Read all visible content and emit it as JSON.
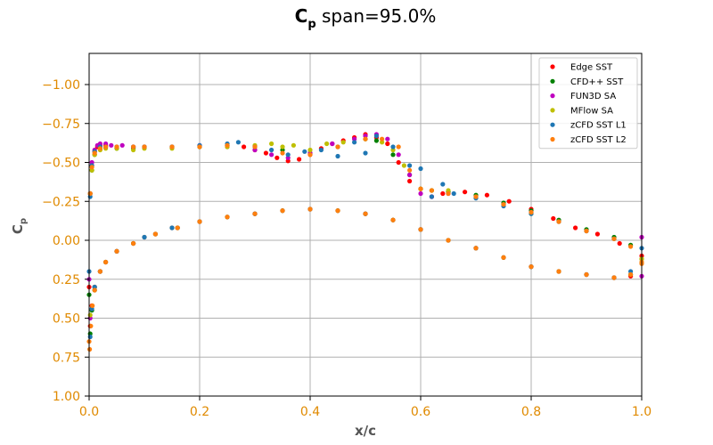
{
  "chart_data": {
    "type": "scatter",
    "title": {
      "symbol": "C",
      "subscript": "p",
      "text": " span=95.0%"
    },
    "xlabel": "x/c",
    "ylabel": {
      "symbol": "C",
      "subscript": "p"
    },
    "xlim": [
      0.0,
      1.0
    ],
    "ylim": [
      1.0,
      -1.2
    ],
    "y_inverted": true,
    "grid": true,
    "legend_position": "top-right",
    "x_ticks": [
      0.0,
      0.2,
      0.4,
      0.6,
      0.8,
      1.0
    ],
    "x_tick_labels": [
      "0.0",
      "0.2",
      "0.4",
      "0.6",
      "0.8",
      "1.0"
    ],
    "y_ticks": [
      -1.0,
      -0.75,
      -0.5,
      -0.25,
      0.0,
      0.25,
      0.5,
      0.75,
      1.0
    ],
    "y_tick_labels": [
      "−1.00",
      "−0.75",
      "−0.50",
      "−0.25",
      "0.00",
      "0.25",
      "0.50",
      "0.75",
      "1.00"
    ],
    "series": [
      {
        "name": "Edge SST",
        "color": "#ff0000",
        "x": [
          0.0,
          0.002,
          0.005,
          0.01,
          0.015,
          0.02,
          0.03,
          0.05,
          0.08,
          0.1,
          0.15,
          0.2,
          0.25,
          0.28,
          0.3,
          0.32,
          0.34,
          0.36,
          0.38,
          0.4,
          0.42,
          0.44,
          0.46,
          0.48,
          0.5,
          0.52,
          0.54,
          0.56,
          0.58,
          0.6,
          0.62,
          0.64,
          0.68,
          0.72,
          0.76,
          0.8,
          0.84,
          0.88,
          0.92,
          0.96,
          1.0,
          0.002,
          0.005,
          0.01,
          0.02,
          0.03,
          0.05,
          0.08,
          0.12,
          0.16,
          0.2,
          0.25,
          0.3,
          0.35,
          0.4,
          0.45,
          0.5,
          0.55,
          0.6,
          0.65,
          0.7,
          0.75,
          0.8,
          0.85,
          0.9,
          0.95,
          0.98
        ],
        "y": [
          0.3,
          -0.3,
          -0.48,
          -0.57,
          -0.6,
          -0.61,
          -0.61,
          -0.6,
          -0.6,
          -0.6,
          -0.6,
          -0.6,
          -0.61,
          -0.6,
          -0.58,
          -0.56,
          -0.53,
          -0.51,
          -0.52,
          -0.55,
          -0.59,
          -0.62,
          -0.64,
          -0.66,
          -0.68,
          -0.66,
          -0.62,
          -0.5,
          -0.38,
          -0.33,
          -0.28,
          -0.3,
          -0.31,
          -0.29,
          -0.25,
          -0.2,
          -0.14,
          -0.08,
          -0.04,
          0.02,
          0.1,
          0.55,
          0.42,
          0.3,
          0.2,
          0.14,
          0.07,
          0.02,
          -0.04,
          -0.08,
          -0.12,
          -0.15,
          -0.17,
          -0.19,
          -0.2,
          -0.19,
          -0.17,
          -0.13,
          -0.07,
          0.0,
          0.05,
          0.11,
          0.17,
          0.2,
          0.22,
          0.24,
          0.23
        ]
      },
      {
        "name": "CFD++ SST",
        "color": "#008000",
        "x": [
          0.0,
          0.002,
          0.005,
          0.01,
          0.02,
          0.03,
          0.05,
          0.08,
          0.1,
          0.15,
          0.2,
          0.25,
          0.3,
          0.35,
          0.4,
          0.45,
          0.5,
          0.52,
          0.55,
          0.58,
          0.6,
          0.62,
          0.65,
          0.7,
          0.75,
          0.8,
          0.85,
          0.9,
          0.95,
          0.98,
          1.0,
          0.002,
          0.005,
          0.01,
          0.02,
          0.03,
          0.05,
          0.08,
          0.12,
          0.16,
          0.2,
          0.25,
          0.3,
          0.35,
          0.4,
          0.45,
          0.5,
          0.55,
          0.6,
          0.65,
          0.7,
          0.75,
          0.8,
          0.85,
          0.9,
          0.95,
          0.98
        ],
        "y": [
          0.35,
          -0.3,
          -0.45,
          -0.55,
          -0.59,
          -0.6,
          -0.59,
          -0.59,
          -0.6,
          -0.6,
          -0.6,
          -0.61,
          -0.6,
          -0.58,
          -0.56,
          -0.6,
          -0.65,
          -0.64,
          -0.55,
          -0.42,
          -0.33,
          -0.32,
          -0.31,
          -0.29,
          -0.24,
          -0.19,
          -0.13,
          -0.07,
          -0.02,
          0.03,
          0.12,
          0.6,
          0.45,
          0.32,
          0.2,
          0.14,
          0.07,
          0.02,
          -0.04,
          -0.08,
          -0.12,
          -0.15,
          -0.17,
          -0.19,
          -0.2,
          -0.19,
          -0.17,
          -0.13,
          -0.07,
          0.0,
          0.05,
          0.11,
          0.17,
          0.2,
          0.22,
          0.24,
          0.22
        ]
      },
      {
        "name": "FUN3D SA",
        "color": "#bf00bf",
        "x": [
          0.0,
          0.002,
          0.005,
          0.01,
          0.015,
          0.02,
          0.03,
          0.04,
          0.06,
          0.08,
          0.1,
          0.15,
          0.2,
          0.25,
          0.3,
          0.33,
          0.36,
          0.4,
          0.44,
          0.48,
          0.5,
          0.52,
          0.54,
          0.56,
          0.58,
          0.6,
          0.62,
          0.65,
          0.7,
          0.75,
          0.8,
          0.85,
          0.9,
          0.95,
          1.0,
          0.002,
          0.01,
          0.02,
          0.05,
          0.1,
          0.15,
          0.2,
          0.3,
          0.4,
          0.5,
          0.6,
          0.7,
          0.8,
          0.9,
          0.95,
          1.0
        ],
        "y": [
          0.25,
          -0.3,
          -0.5,
          -0.58,
          -0.61,
          -0.62,
          -0.62,
          -0.61,
          -0.61,
          -0.6,
          -0.6,
          -0.6,
          -0.61,
          -0.6,
          -0.58,
          -0.55,
          -0.53,
          -0.56,
          -0.62,
          -0.65,
          -0.67,
          -0.68,
          -0.65,
          -0.55,
          -0.42,
          -0.3,
          -0.28,
          -0.3,
          -0.28,
          -0.23,
          -0.18,
          -0.12,
          -0.06,
          -0.01,
          0.23,
          0.5,
          0.3,
          0.2,
          0.07,
          -0.02,
          -0.08,
          -0.12,
          -0.17,
          -0.2,
          -0.17,
          -0.07,
          0.05,
          0.17,
          0.22,
          0.24,
          -0.02
        ]
      },
      {
        "name": "MFlow SA",
        "color": "#bfbf00",
        "x": [
          0.002,
          0.005,
          0.01,
          0.02,
          0.03,
          0.05,
          0.08,
          0.1,
          0.15,
          0.2,
          0.25,
          0.3,
          0.33,
          0.35,
          0.37,
          0.4,
          0.43,
          0.46,
          0.5,
          0.53,
          0.55,
          0.57,
          0.6,
          0.62,
          0.65,
          0.7,
          0.75,
          0.8,
          0.85,
          0.9,
          0.95,
          1.0,
          0.002,
          0.01,
          0.02,
          0.05,
          0.1,
          0.15,
          0.2,
          0.3,
          0.4,
          0.5,
          0.6,
          0.7,
          0.8,
          0.9,
          0.95
        ],
        "y": [
          -0.3,
          -0.45,
          -0.55,
          -0.58,
          -0.59,
          -0.59,
          -0.58,
          -0.59,
          -0.59,
          -0.6,
          -0.6,
          -0.61,
          -0.62,
          -0.6,
          -0.61,
          -0.58,
          -0.62,
          -0.63,
          -0.65,
          -0.63,
          -0.58,
          -0.48,
          -0.33,
          -0.32,
          -0.32,
          -0.28,
          -0.23,
          -0.17,
          -0.12,
          -0.06,
          -0.01,
          0.12,
          0.48,
          0.3,
          0.2,
          0.07,
          -0.02,
          -0.08,
          -0.12,
          -0.17,
          -0.2,
          -0.17,
          -0.07,
          0.05,
          0.17,
          0.22,
          0.24
        ]
      },
      {
        "name": "zCFD SST L1",
        "color": "#1f77b4",
        "x": [
          0.0,
          0.002,
          0.005,
          0.01,
          0.02,
          0.03,
          0.05,
          0.08,
          0.1,
          0.15,
          0.2,
          0.25,
          0.27,
          0.3,
          0.33,
          0.36,
          0.39,
          0.42,
          0.45,
          0.48,
          0.5,
          0.52,
          0.55,
          0.58,
          0.6,
          0.62,
          0.64,
          0.66,
          0.7,
          0.75,
          0.8,
          0.85,
          0.9,
          0.95,
          1.0,
          0.002,
          0.005,
          0.01,
          0.02,
          0.05,
          0.1,
          0.15,
          0.2,
          0.3,
          0.4,
          0.5,
          0.6,
          0.7,
          0.8,
          0.9,
          0.95,
          0.98
        ],
        "y": [
          0.2,
          -0.28,
          -0.48,
          -0.57,
          -0.6,
          -0.6,
          -0.6,
          -0.6,
          -0.6,
          -0.6,
          -0.61,
          -0.62,
          -0.63,
          -0.6,
          -0.58,
          -0.55,
          -0.57,
          -0.58,
          -0.54,
          -0.63,
          -0.56,
          -0.67,
          -0.6,
          -0.48,
          -0.46,
          -0.28,
          -0.36,
          -0.3,
          -0.27,
          -0.22,
          -0.17,
          -0.12,
          -0.06,
          -0.01,
          0.05,
          0.62,
          0.44,
          0.3,
          0.2,
          0.07,
          -0.02,
          -0.08,
          -0.12,
          -0.17,
          -0.2,
          -0.17,
          -0.07,
          0.05,
          0.17,
          0.22,
          0.24,
          0.2
        ]
      },
      {
        "name": "zCFD SST L2",
        "color": "#ff7f0e",
        "x": [
          0.0,
          0.002,
          0.005,
          0.01,
          0.02,
          0.03,
          0.05,
          0.08,
          0.1,
          0.15,
          0.2,
          0.25,
          0.3,
          0.35,
          0.4,
          0.45,
          0.5,
          0.53,
          0.56,
          0.58,
          0.6,
          0.62,
          0.65,
          0.7,
          0.75,
          0.8,
          0.85,
          0.9,
          0.95,
          0.98,
          1.0,
          0.001,
          0.003,
          0.006,
          0.01,
          0.02,
          0.03,
          0.05,
          0.08,
          0.12,
          0.16,
          0.2,
          0.25,
          0.3,
          0.35,
          0.4,
          0.45,
          0.5,
          0.55,
          0.6,
          0.65,
          0.7,
          0.75,
          0.8,
          0.85,
          0.9,
          0.95,
          0.98,
          1.0
        ],
        "y": [
          0.65,
          -0.3,
          -0.47,
          -0.56,
          -0.59,
          -0.6,
          -0.6,
          -0.6,
          -0.6,
          -0.6,
          -0.6,
          -0.61,
          -0.6,
          -0.56,
          -0.55,
          -0.6,
          -0.65,
          -0.65,
          -0.6,
          -0.45,
          -0.33,
          -0.32,
          -0.3,
          -0.28,
          -0.23,
          -0.18,
          -0.12,
          -0.06,
          -0.01,
          0.04,
          0.14,
          0.7,
          0.55,
          0.42,
          0.32,
          0.2,
          0.14,
          0.07,
          0.02,
          -0.04,
          -0.08,
          -0.12,
          -0.15,
          -0.17,
          -0.19,
          -0.2,
          -0.19,
          -0.17,
          -0.13,
          -0.07,
          0.0,
          0.05,
          0.11,
          0.17,
          0.2,
          0.22,
          0.24,
          0.22,
          0.15
        ]
      }
    ]
  }
}
